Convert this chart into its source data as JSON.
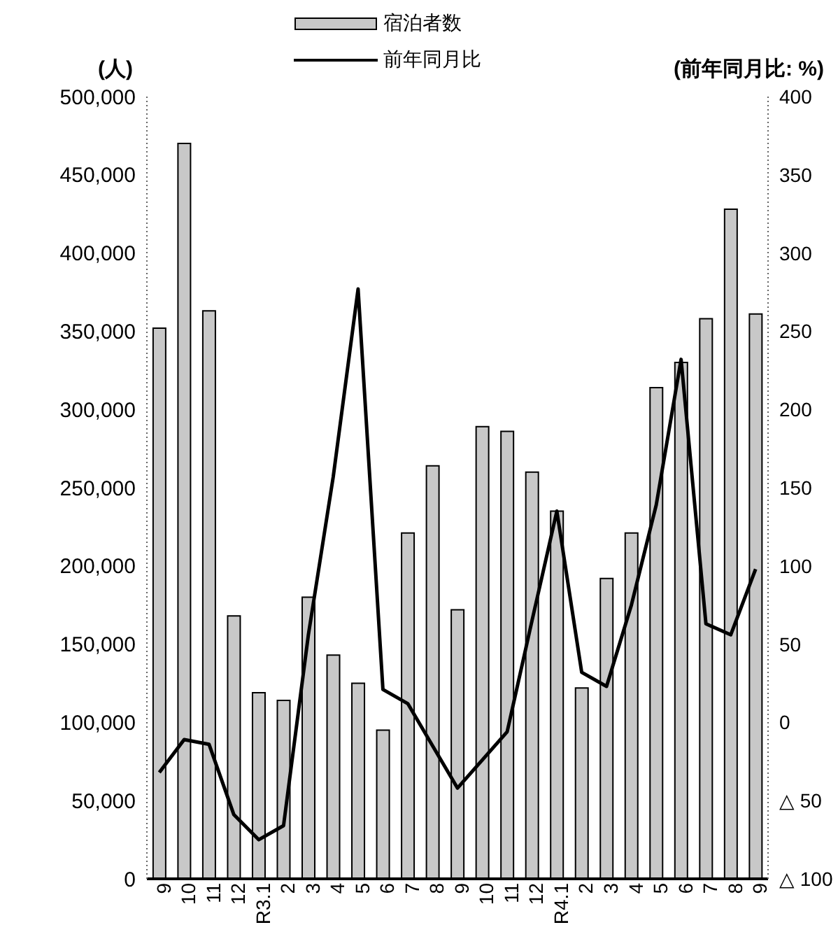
{
  "chart_data": {
    "type": "bar",
    "ylabel": "(人)",
    "y2label": "(前年同月比: %)",
    "categories": [
      "9",
      "10",
      "11",
      "12",
      "R3.1",
      "2",
      "3",
      "4",
      "5",
      "6",
      "7",
      "8",
      "9",
      "10",
      "11",
      "12",
      "R4.1",
      "2",
      "3",
      "4",
      "5",
      "6",
      "7",
      "8",
      "9"
    ],
    "series": [
      {
        "name": "宿泊者数",
        "type": "bar",
        "color": "#c8c8c8",
        "values": [
          352000,
          470000,
          363000,
          168000,
          119000,
          114000,
          180000,
          143000,
          125000,
          95000,
          221000,
          264000,
          172000,
          289000,
          286000,
          260000,
          235000,
          122000,
          192000,
          221000,
          314000,
          330000,
          358000,
          428000,
          361000
        ]
      },
      {
        "name": "前年同月比",
        "type": "line",
        "axis": "y2",
        "color": "#000000",
        "values": [
          -32,
          -11,
          -14,
          -59,
          -75,
          -66,
          56,
          157,
          277,
          21,
          12,
          -15,
          -42,
          -24,
          -6,
          65,
          135,
          32,
          23,
          75,
          139,
          232,
          63,
          56,
          98
        ]
      }
    ],
    "ylim": [
      0,
      500000
    ],
    "yticks": [
      0,
      {
        "value": 50000,
        "label": "50,000"
      },
      {
        "value": 100000,
        "label": "100,000"
      },
      {
        "value": 150000,
        "label": "150,000"
      },
      {
        "value": 200000,
        "label": "200,000"
      },
      {
        "value": 250000,
        "label": "250,000"
      },
      {
        "value": 300000,
        "label": "300,000"
      },
      {
        "value": 350000,
        "label": "350,000"
      },
      {
        "value": 400000,
        "label": "400,000"
      },
      {
        "value": 450000,
        "label": "450,000"
      },
      {
        "value": 500000,
        "label": "500,000"
      }
    ],
    "y2lim": [
      -100,
      400
    ],
    "y2ticks": [
      {
        "value": -100,
        "label": "△ 100"
      },
      {
        "value": -50,
        "label": "△ 50"
      },
      0,
      50,
      100,
      150,
      200,
      250,
      300,
      350,
      400
    ],
    "legend": "top",
    "marker": "none",
    "line_style": "solid"
  }
}
